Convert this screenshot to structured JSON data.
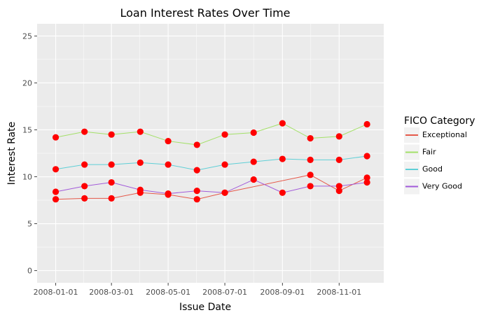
{
  "chart_data": {
    "type": "line",
    "title": "Loan Interest Rates Over Time",
    "xlabel": "Issue Date",
    "ylabel": "Interest Rate",
    "x_ticks": [
      "2008-01-01",
      "2008-03-01",
      "2008-05-01",
      "2008-07-01",
      "2008-09-01",
      "2008-11-01"
    ],
    "y_ticks": [
      "0",
      "5",
      "10",
      "15",
      "20",
      "25"
    ],
    "ylim": [
      -1.3,
      26.3
    ],
    "xlim": [
      "2007-12-12",
      "2008-12-19"
    ],
    "grid": true,
    "legend": {
      "title": "FICO Category",
      "position": "right"
    },
    "x": [
      "2008-01-01",
      "2008-02-01",
      "2008-03-01",
      "2008-04-01",
      "2008-05-01",
      "2008-06-01",
      "2008-07-01",
      "2008-08-01",
      "2008-09-01",
      "2008-10-01",
      "2008-11-01",
      "2008-12-01"
    ],
    "series": [
      {
        "name": "Exceptional",
        "color": "#e5594a",
        "x": [
          "2008-01-01",
          "2008-02-01",
          "2008-03-01",
          "2008-04-01",
          "2008-05-01",
          "2008-06-01",
          "2008-07-01",
          "2008-10-01",
          "2008-11-01",
          "2008-12-01"
        ],
        "values": [
          7.6,
          7.7,
          7.7,
          8.3,
          8.1,
          7.6,
          8.3,
          10.2,
          8.5,
          9.9
        ]
      },
      {
        "name": "Fair",
        "color": "#a3e068",
        "x": [
          "2008-01-01",
          "2008-02-01",
          "2008-03-01",
          "2008-04-01",
          "2008-05-01",
          "2008-06-01",
          "2008-07-01",
          "2008-08-01",
          "2008-09-01",
          "2008-10-01",
          "2008-11-01",
          "2008-12-01"
        ],
        "values": [
          14.2,
          14.8,
          14.5,
          14.8,
          13.8,
          13.4,
          14.5,
          14.7,
          15.7,
          14.1,
          14.3,
          15.6
        ]
      },
      {
        "name": "Good",
        "color": "#5fcfd6",
        "x": [
          "2008-01-01",
          "2008-02-01",
          "2008-03-01",
          "2008-04-01",
          "2008-05-01",
          "2008-06-01",
          "2008-07-01",
          "2008-08-01",
          "2008-09-01",
          "2008-10-01",
          "2008-11-01",
          "2008-12-01"
        ],
        "values": [
          10.8,
          11.3,
          11.3,
          11.5,
          11.3,
          10.7,
          11.3,
          11.6,
          11.9,
          11.8,
          11.8,
          12.2
        ]
      },
      {
        "name": "Very Good",
        "color": "#a25bd9",
        "x": [
          "2008-01-01",
          "2008-02-01",
          "2008-03-01",
          "2008-04-01",
          "2008-05-01",
          "2008-06-01",
          "2008-07-01",
          "2008-08-01",
          "2008-09-01",
          "2008-10-01",
          "2008-11-01",
          "2008-12-01"
        ],
        "values": [
          8.4,
          9.0,
          9.4,
          8.6,
          8.2,
          8.5,
          8.3,
          9.7,
          8.3,
          9.0,
          9.0,
          9.4
        ]
      }
    ],
    "point_color": "#ff0000"
  }
}
